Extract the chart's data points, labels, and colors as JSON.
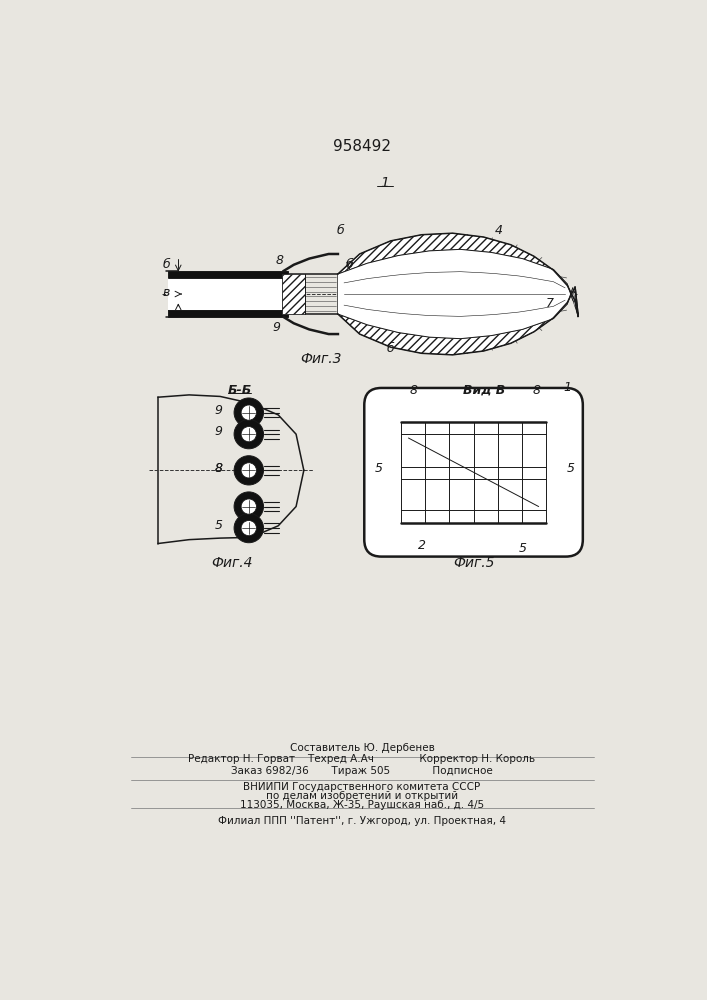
{
  "patent_number": "958492",
  "bg_color": "#e8e6e0",
  "line_color": "#1a1a1a",
  "fig_width": 7.07,
  "fig_height": 10.0,
  "fig3_label": "Фиг.3",
  "fig4_label": "Фиг.4",
  "fig5_label": "Фиг.5",
  "vid_b_label": "Вид В",
  "bb_label": "Б-Б",
  "footer_lines": [
    "Составитель Ю. Дербенев",
    "Редактор Н. Горват    Техред А.Ач              Корректор Н. Король",
    "Заказ 6982/36       Тираж 505             Подписное",
    "ВНИИПИ Государственного комитета СССР",
    "по делам изобретений и открытий",
    "113035, Москва, Ж-35, Раушская наб., д. 4/5",
    "Филиал ППП ''Патент'', г. Ужгород, ул. Проектная, 4"
  ]
}
